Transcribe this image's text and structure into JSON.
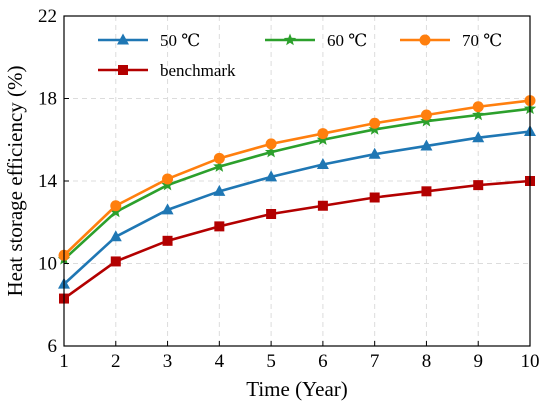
{
  "chart_data": {
    "type": "line",
    "xlabel": "Time (Year)",
    "ylabel": "Heat storage efficiency (%)",
    "xlim": [
      1,
      10
    ],
    "ylim": [
      6,
      22
    ],
    "x": [
      1,
      2,
      3,
      4,
      5,
      6,
      7,
      8,
      9,
      10
    ],
    "x_ticks": [
      "1",
      "2",
      "3",
      "4",
      "5",
      "6",
      "7",
      "8",
      "9",
      "10"
    ],
    "y_ticks": [
      "6",
      "10",
      "14",
      "18",
      "22"
    ],
    "grid": true,
    "legend_position": "top",
    "series": [
      {
        "name": "50 ℃",
        "color": "#1f77b4",
        "marker": "triangle",
        "values": [
          9.0,
          11.3,
          12.6,
          13.5,
          14.2,
          14.8,
          15.3,
          15.7,
          16.1,
          16.4
        ]
      },
      {
        "name": "60 ℃",
        "color": "#2ca02c",
        "marker": "star",
        "values": [
          10.2,
          12.5,
          13.8,
          14.7,
          15.4,
          16.0,
          16.5,
          16.9,
          17.2,
          17.5
        ]
      },
      {
        "name": "70 ℃",
        "color": "#ff7f0e",
        "marker": "circle",
        "values": [
          10.4,
          12.8,
          14.1,
          15.1,
          15.8,
          16.3,
          16.8,
          17.2,
          17.6,
          17.9
        ]
      },
      {
        "name": "benchmark",
        "color": "#b30000",
        "marker": "square",
        "values": [
          8.3,
          10.1,
          11.1,
          11.8,
          12.4,
          12.8,
          13.2,
          13.5,
          13.8,
          14.0
        ]
      }
    ]
  }
}
